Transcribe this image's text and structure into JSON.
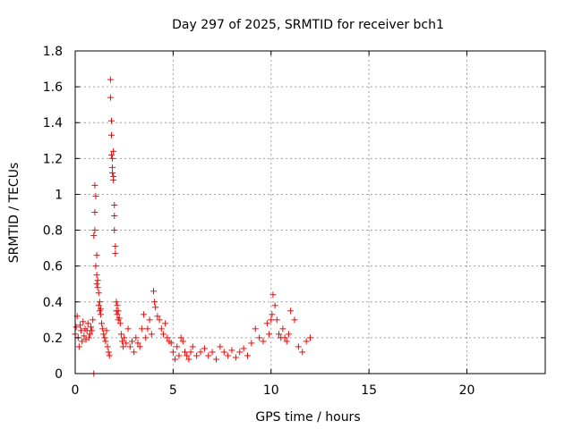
{
  "chart_data": {
    "type": "scatter",
    "title": "Day 297 of 2025, SRMTID for receiver bch1",
    "xlabel": "GPS time / hours",
    "ylabel": "SRMTID / TECUs",
    "xlim": [
      0,
      24
    ],
    "ylim": [
      0,
      1.8
    ],
    "xticks": [
      0,
      5,
      10,
      15,
      20
    ],
    "xtick_labels": [
      "0",
      "5",
      "10",
      "15",
      "20"
    ],
    "yticks": [
      0,
      0.2,
      0.4,
      0.6,
      0.8,
      1,
      1.2,
      1.4,
      1.6,
      1.8
    ],
    "ytick_labels": [
      "0",
      "0.2",
      "0.4",
      "0.6",
      "0.8",
      "1",
      "1.2",
      "1.4",
      "1.6",
      "1.8"
    ],
    "grid": true,
    "marker": "+",
    "color": "#ff0000",
    "series": [
      {
        "name": "bch1",
        "x": [
          0.0,
          0.05,
          0.1,
          0.15,
          0.2,
          0.25,
          0.3,
          0.35,
          0.4,
          0.45,
          0.5,
          0.55,
          0.6,
          0.65,
          0.7,
          0.75,
          0.8,
          0.85,
          0.9,
          0.95,
          0.95,
          1.0,
          1.0,
          1.0,
          1.05,
          1.05,
          1.1,
          1.1,
          1.1,
          1.15,
          1.15,
          1.2,
          1.2,
          1.25,
          1.25,
          1.3,
          1.3,
          1.35,
          1.4,
          1.45,
          1.5,
          1.55,
          1.6,
          1.65,
          1.7,
          1.75,
          1.8,
          1.8,
          1.85,
          1.85,
          1.85,
          1.9,
          1.9,
          1.9,
          1.95,
          1.95,
          1.95,
          2.0,
          2.0,
          2.0,
          2.05,
          2.05,
          2.1,
          2.1,
          2.15,
          2.15,
          2.2,
          2.2,
          2.25,
          2.3,
          2.35,
          2.4,
          2.45,
          2.5,
          2.6,
          2.7,
          2.8,
          2.9,
          3.0,
          3.1,
          3.2,
          3.3,
          3.4,
          3.5,
          3.6,
          3.7,
          3.8,
          3.9,
          4.0,
          4.05,
          4.1,
          4.2,
          4.3,
          4.4,
          4.5,
          4.6,
          4.7,
          4.8,
          4.9,
          5.0,
          5.1,
          5.2,
          5.3,
          5.4,
          5.5,
          5.6,
          5.7,
          5.8,
          5.9,
          6.0,
          6.2,
          6.4,
          6.6,
          6.8,
          7.0,
          7.2,
          7.4,
          7.6,
          7.8,
          8.0,
          8.2,
          8.4,
          8.6,
          8.8,
          9.0,
          9.2,
          9.4,
          9.6,
          9.8,
          9.9,
          10.0,
          10.05,
          10.1,
          10.2,
          10.3,
          10.4,
          10.5,
          10.6,
          10.7,
          10.8,
          10.9,
          11.0,
          11.2,
          11.4,
          11.6,
          11.8,
          12.0
        ],
        "y": [
          0.22,
          0.26,
          0.32,
          0.2,
          0.15,
          0.27,
          0.24,
          0.18,
          0.29,
          0.21,
          0.25,
          0.19,
          0.24,
          0.28,
          0.2,
          0.22,
          0.26,
          0.24,
          0.3,
          0.0,
          0.77,
          0.8,
          0.9,
          1.05,
          0.99,
          0.6,
          0.66,
          0.5,
          0.55,
          0.48,
          0.52,
          0.45,
          0.38,
          0.35,
          0.4,
          0.33,
          0.36,
          0.28,
          0.25,
          0.22,
          0.2,
          0.18,
          0.24,
          0.15,
          0.12,
          0.1,
          1.64,
          1.54,
          1.41,
          1.33,
          1.22,
          1.15,
          1.12,
          1.2,
          1.08,
          1.1,
          1.24,
          0.94,
          0.88,
          0.8,
          0.71,
          0.67,
          0.4,
          0.35,
          0.38,
          0.33,
          0.3,
          0.35,
          0.31,
          0.28,
          0.22,
          0.18,
          0.15,
          0.2,
          0.17,
          0.25,
          0.15,
          0.18,
          0.12,
          0.2,
          0.17,
          0.15,
          0.25,
          0.33,
          0.2,
          0.25,
          0.3,
          0.22,
          0.46,
          0.4,
          0.37,
          0.32,
          0.3,
          0.25,
          0.22,
          0.28,
          0.2,
          0.18,
          0.17,
          0.12,
          0.08,
          0.15,
          0.1,
          0.2,
          0.18,
          0.12,
          0.1,
          0.08,
          0.12,
          0.15,
          0.1,
          0.12,
          0.14,
          0.1,
          0.12,
          0.08,
          0.15,
          0.12,
          0.1,
          0.13,
          0.09,
          0.12,
          0.14,
          0.1,
          0.17,
          0.25,
          0.2,
          0.18,
          0.28,
          0.22,
          0.3,
          0.33,
          0.44,
          0.38,
          0.3,
          0.22,
          0.2,
          0.25,
          0.2,
          0.18,
          0.22,
          0.35,
          0.3,
          0.15,
          0.12,
          0.18,
          0.2
        ]
      }
    ]
  }
}
